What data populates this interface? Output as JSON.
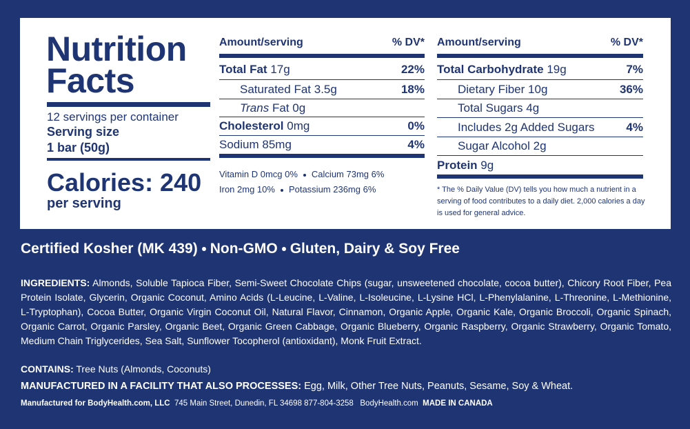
{
  "panel": {
    "title_line1": "Nutrition",
    "title_line2": "Facts",
    "servings": "12 servings per container",
    "serving_size_label": "Serving size",
    "serving_size": "1 bar (50g)",
    "calories": "Calories: 240",
    "per_serving": "per serving",
    "col1": {
      "header_amount": "Amount/serving",
      "header_dv": "% DV*",
      "rows": [
        {
          "name": "Total Fat",
          "amount": "17g",
          "dv": "22%"
        },
        {
          "name": "Saturated Fat",
          "amount": "3.5g",
          "dv": "18%"
        },
        {
          "italic": "Trans",
          "name": "Fat",
          "amount": "0g"
        },
        {
          "name": "Cholesterol",
          "amount": "0mg",
          "dv": "0%"
        },
        {
          "name": "Sodium",
          "amount": "85mg",
          "dv": "4%"
        }
      ],
      "micros": [
        [
          "Vitamin D 0mcg 0%",
          "Calcium 73mg 6%"
        ],
        [
          "Iron 2mg 10%",
          "Potassium 236mg 6%"
        ]
      ]
    },
    "col2": {
      "header_amount": "Amount/serving",
      "header_dv": "% DV*",
      "rows": [
        {
          "name": "Total Carbohydrate",
          "amount": "19g",
          "dv": "7%"
        },
        {
          "name": "Dietary Fiber",
          "amount": "10g",
          "dv": "36%"
        },
        {
          "name": "Total Sugars",
          "amount": "4g"
        },
        {
          "name": "Includes 2g Added Sugars",
          "dv": "4%"
        },
        {
          "name": "Sugar Alcohol",
          "amount": "2g"
        },
        {
          "name": "Protein",
          "amount": "9g"
        }
      ],
      "footnote": "* The % Daily Value (DV) tells you how much a nutrient in a serving of food contributes to a daily diet. 2,000 calories a day is used for general advice."
    }
  },
  "claims": [
    "Certified Kosher (MK 439)",
    "Non-GMO",
    "Gluten, Dairy & Soy Free"
  ],
  "ingredients": {
    "label": "INGREDIENTS:",
    "text": "Almonds, Soluble Tapioca Fiber, Semi-Sweet Chocolate Chips (sugar, unsweetened chocolate, cocoa butter), Chicory Root Fiber, Pea Protein Isolate, Glycerin, Organic Coconut, Amino Acids (L-Leucine, L-Valine, L-Isoleucine, L-Lysine HCl, L-Phenylalanine, L-Threonine, L-Methionine, L-Tryptophan), Cocoa Butter, Organic Virgin Coconut Oil, Natural Flavor, Cinnamon, Organic Apple, Organic Kale, Organic Broccoli, Organic Spinach, Organic Carrot, Organic Parsley, Organic Beet, Organic Green Cabbage, Organic Blueberry, Organic Raspberry, Organic Strawberry, Organic Tomato, Medium Chain Triglycerides, Sea Salt, Sunflower Tocopherol (antioxidant), Monk Fruit Extract."
  },
  "contains": {
    "label": "CONTAINS:",
    "text": "Tree Nuts (Almonds, Coconuts)"
  },
  "facility": {
    "label": "MANUFACTURED IN A FACILITY THAT ALSO PROCESSES:",
    "text": "Egg, Milk, Other Tree Nuts, Peanuts, Sesame, Soy & Wheat."
  },
  "footer": {
    "manufacturer": "Manufactured for BodyHealth.com, LLC",
    "address": "745 Main Street, Dunedin, FL 34698 877-804-3258",
    "website": "BodyHealth.com",
    "origin": "MADE IN CANADA"
  }
}
